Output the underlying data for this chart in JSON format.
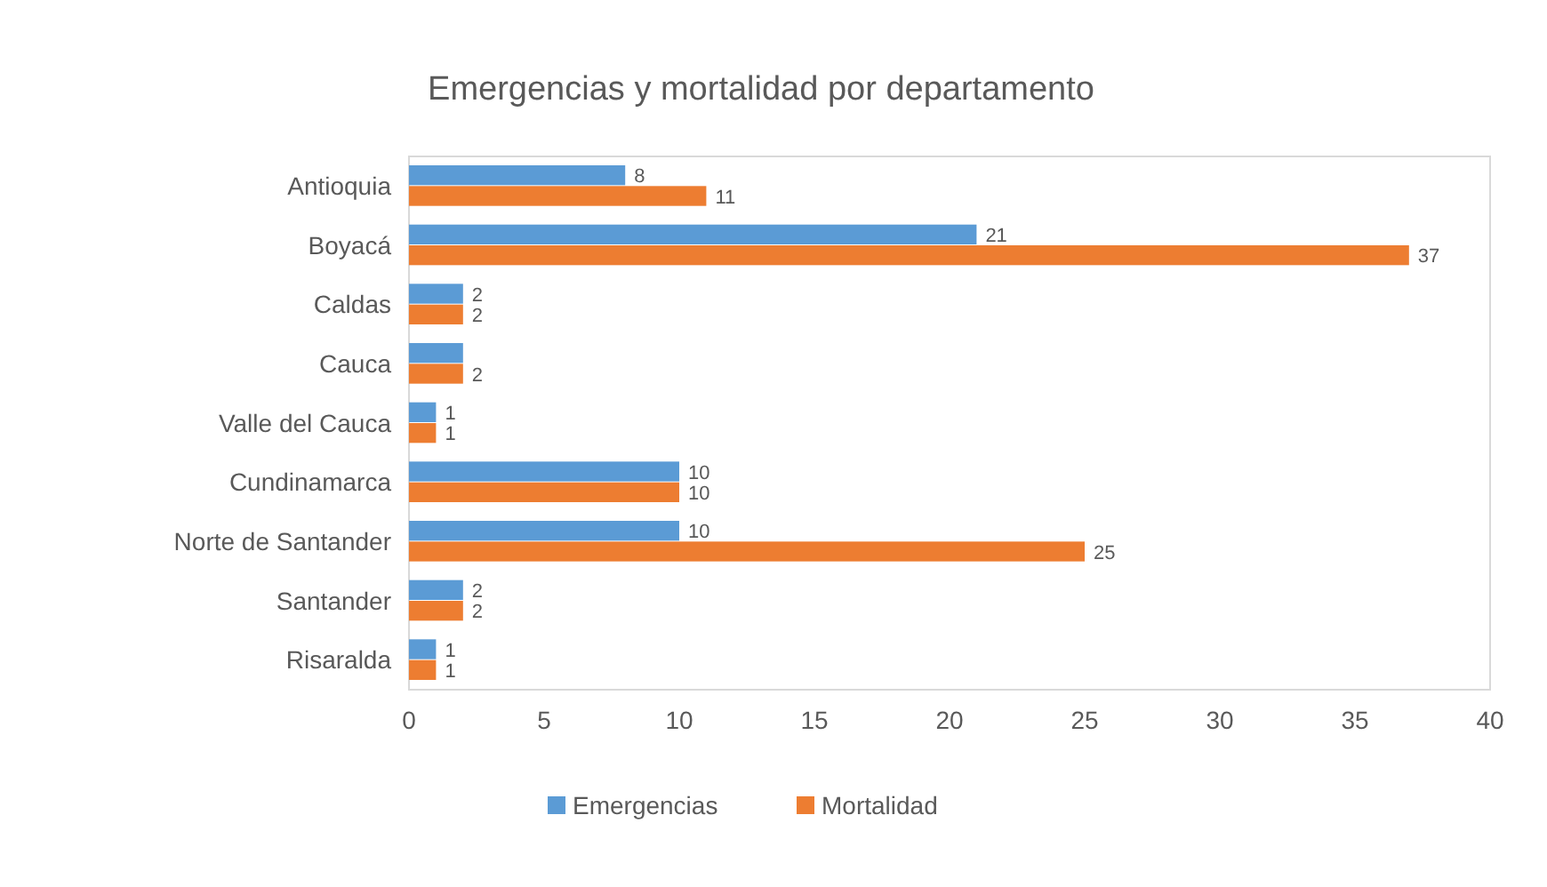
{
  "chart_data": {
    "type": "bar",
    "orientation": "horizontal",
    "title": "Emergencias y mortalidad por departamento",
    "categories": [
      "Antioquia",
      "Boyacá",
      "Caldas",
      "Cauca",
      "Valle del Cauca",
      "Cundinamarca",
      "Norte de Santander",
      "Santander",
      "Risaralda"
    ],
    "series": [
      {
        "name": "Emergencias",
        "color": "#5b9bd5",
        "values": [
          8,
          21,
          2,
          2,
          1,
          10,
          10,
          2,
          1
        ],
        "value_labels": [
          "8",
          "21",
          "2",
          null,
          "1",
          "10",
          "10",
          "2",
          "1"
        ]
      },
      {
        "name": "Mortalidad",
        "color": "#ed7d31",
        "values": [
          11,
          37,
          2,
          2,
          1,
          10,
          25,
          2,
          1
        ],
        "value_labels": [
          "11",
          "37",
          "2",
          "2",
          "1",
          "10",
          "25",
          "2",
          "1"
        ]
      }
    ],
    "xlim": [
      0,
      40
    ],
    "xticks": [
      0,
      5,
      10,
      15,
      20,
      25,
      30,
      35,
      40
    ],
    "grid": false,
    "legend": "bottom"
  }
}
